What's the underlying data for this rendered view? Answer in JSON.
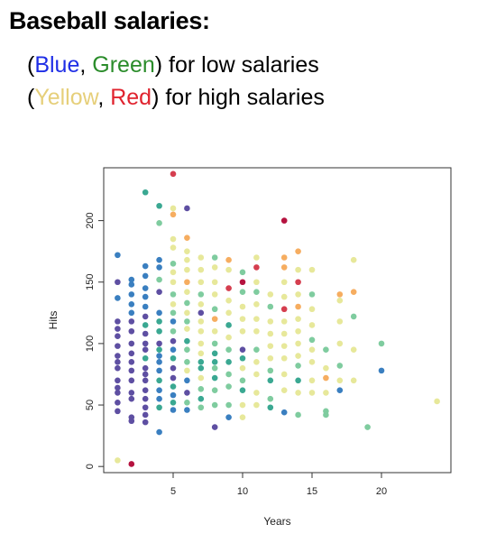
{
  "heading": "Baseball salaries:",
  "legend_lines": {
    "line1": {
      "open": "(",
      "blue": "Blue",
      "sep": ", ",
      "green": "Green",
      "close": ") for low salaries"
    },
    "line2": {
      "open": "(",
      "yellow": "Yellow",
      "sep": ", ",
      "red": "Red",
      "close": ") for high salaries"
    }
  },
  "colors": {
    "blue": "#3a7fc0",
    "purple": "#5e4fa2",
    "teal": "#3aa892",
    "green": "#7fcc9f",
    "yellow": "#e7e89a",
    "orange": "#f6ad60",
    "red": "#d53e4f",
    "darkred": "#b5123f"
  },
  "chart_data": {
    "type": "scatter",
    "title": "",
    "xlabel": "Years",
    "ylabel": "Hits",
    "xlim": [
      0,
      25
    ],
    "ylim": [
      -5,
      243
    ],
    "xticks": [
      5,
      10,
      15,
      20
    ],
    "yticks": [
      0,
      50,
      100,
      150,
      200
    ],
    "grid": false,
    "points": [
      {
        "x": 1,
        "y": 172,
        "c": "blue"
      },
      {
        "x": 1,
        "y": 150,
        "c": "purple"
      },
      {
        "x": 1,
        "y": 137,
        "c": "blue"
      },
      {
        "x": 1,
        "y": 118,
        "c": "purple"
      },
      {
        "x": 1,
        "y": 112,
        "c": "purple"
      },
      {
        "x": 1,
        "y": 106,
        "c": "purple"
      },
      {
        "x": 1,
        "y": 98,
        "c": "purple"
      },
      {
        "x": 1,
        "y": 90,
        "c": "purple"
      },
      {
        "x": 1,
        "y": 85,
        "c": "purple"
      },
      {
        "x": 1,
        "y": 80,
        "c": "purple"
      },
      {
        "x": 1,
        "y": 70,
        "c": "purple"
      },
      {
        "x": 1,
        "y": 64,
        "c": "purple"
      },
      {
        "x": 1,
        "y": 60,
        "c": "purple"
      },
      {
        "x": 1,
        "y": 52,
        "c": "purple"
      },
      {
        "x": 1,
        "y": 45,
        "c": "purple"
      },
      {
        "x": 1,
        "y": 5,
        "c": "yellow"
      },
      {
        "x": 2,
        "y": 152,
        "c": "blue"
      },
      {
        "x": 2,
        "y": 148,
        "c": "blue"
      },
      {
        "x": 2,
        "y": 140,
        "c": "blue"
      },
      {
        "x": 2,
        "y": 132,
        "c": "blue"
      },
      {
        "x": 2,
        "y": 125,
        "c": "blue"
      },
      {
        "x": 2,
        "y": 118,
        "c": "purple"
      },
      {
        "x": 2,
        "y": 110,
        "c": "purple"
      },
      {
        "x": 2,
        "y": 100,
        "c": "purple"
      },
      {
        "x": 2,
        "y": 92,
        "c": "purple"
      },
      {
        "x": 2,
        "y": 85,
        "c": "purple"
      },
      {
        "x": 2,
        "y": 78,
        "c": "purple"
      },
      {
        "x": 2,
        "y": 70,
        "c": "purple"
      },
      {
        "x": 2,
        "y": 60,
        "c": "purple"
      },
      {
        "x": 2,
        "y": 55,
        "c": "purple"
      },
      {
        "x": 2,
        "y": 40,
        "c": "purple"
      },
      {
        "x": 2,
        "y": 37,
        "c": "purple"
      },
      {
        "x": 2,
        "y": 2,
        "c": "darkred"
      },
      {
        "x": 3,
        "y": 223,
        "c": "teal"
      },
      {
        "x": 3,
        "y": 163,
        "c": "blue"
      },
      {
        "x": 3,
        "y": 155,
        "c": "blue"
      },
      {
        "x": 3,
        "y": 145,
        "c": "blue"
      },
      {
        "x": 3,
        "y": 138,
        "c": "blue"
      },
      {
        "x": 3,
        "y": 130,
        "c": "blue"
      },
      {
        "x": 3,
        "y": 122,
        "c": "purple"
      },
      {
        "x": 3,
        "y": 115,
        "c": "teal"
      },
      {
        "x": 3,
        "y": 108,
        "c": "purple"
      },
      {
        "x": 3,
        "y": 100,
        "c": "purple"
      },
      {
        "x": 3,
        "y": 95,
        "c": "purple"
      },
      {
        "x": 3,
        "y": 88,
        "c": "teal"
      },
      {
        "x": 3,
        "y": 80,
        "c": "purple"
      },
      {
        "x": 3,
        "y": 75,
        "c": "purple"
      },
      {
        "x": 3,
        "y": 70,
        "c": "purple"
      },
      {
        "x": 3,
        "y": 62,
        "c": "purple"
      },
      {
        "x": 3,
        "y": 55,
        "c": "purple"
      },
      {
        "x": 3,
        "y": 48,
        "c": "purple"
      },
      {
        "x": 3,
        "y": 42,
        "c": "purple"
      },
      {
        "x": 3,
        "y": 36,
        "c": "purple"
      },
      {
        "x": 4,
        "y": 212,
        "c": "teal"
      },
      {
        "x": 4,
        "y": 198,
        "c": "green"
      },
      {
        "x": 4,
        "y": 168,
        "c": "blue"
      },
      {
        "x": 4,
        "y": 162,
        "c": "blue"
      },
      {
        "x": 4,
        "y": 152,
        "c": "green"
      },
      {
        "x": 4,
        "y": 142,
        "c": "purple"
      },
      {
        "x": 4,
        "y": 125,
        "c": "blue"
      },
      {
        "x": 4,
        "y": 118,
        "c": "teal"
      },
      {
        "x": 4,
        "y": 110,
        "c": "teal"
      },
      {
        "x": 4,
        "y": 100,
        "c": "purple"
      },
      {
        "x": 4,
        "y": 95,
        "c": "teal"
      },
      {
        "x": 4,
        "y": 90,
        "c": "blue"
      },
      {
        "x": 4,
        "y": 85,
        "c": "blue"
      },
      {
        "x": 4,
        "y": 78,
        "c": "blue"
      },
      {
        "x": 4,
        "y": 70,
        "c": "teal"
      },
      {
        "x": 4,
        "y": 62,
        "c": "blue"
      },
      {
        "x": 4,
        "y": 55,
        "c": "blue"
      },
      {
        "x": 4,
        "y": 48,
        "c": "teal"
      },
      {
        "x": 4,
        "y": 28,
        "c": "blue"
      },
      {
        "x": 5,
        "y": 238,
        "c": "red"
      },
      {
        "x": 5,
        "y": 210,
        "c": "yellow"
      },
      {
        "x": 5,
        "y": 205,
        "c": "orange"
      },
      {
        "x": 5,
        "y": 185,
        "c": "yellow"
      },
      {
        "x": 5,
        "y": 178,
        "c": "yellow"
      },
      {
        "x": 5,
        "y": 165,
        "c": "green"
      },
      {
        "x": 5,
        "y": 158,
        "c": "yellow"
      },
      {
        "x": 5,
        "y": 150,
        "c": "yellow"
      },
      {
        "x": 5,
        "y": 140,
        "c": "green"
      },
      {
        "x": 5,
        "y": 132,
        "c": "yellow"
      },
      {
        "x": 5,
        "y": 125,
        "c": "green"
      },
      {
        "x": 5,
        "y": 118,
        "c": "blue"
      },
      {
        "x": 5,
        "y": 110,
        "c": "green"
      },
      {
        "x": 5,
        "y": 102,
        "c": "purple"
      },
      {
        "x": 5,
        "y": 95,
        "c": "blue"
      },
      {
        "x": 5,
        "y": 88,
        "c": "teal"
      },
      {
        "x": 5,
        "y": 80,
        "c": "purple"
      },
      {
        "x": 5,
        "y": 72,
        "c": "purple"
      },
      {
        "x": 5,
        "y": 65,
        "c": "teal"
      },
      {
        "x": 5,
        "y": 58,
        "c": "blue"
      },
      {
        "x": 5,
        "y": 52,
        "c": "teal"
      },
      {
        "x": 5,
        "y": 46,
        "c": "blue"
      },
      {
        "x": 6,
        "y": 210,
        "c": "purple"
      },
      {
        "x": 6,
        "y": 186,
        "c": "orange"
      },
      {
        "x": 6,
        "y": 175,
        "c": "yellow"
      },
      {
        "x": 6,
        "y": 168,
        "c": "yellow"
      },
      {
        "x": 6,
        "y": 160,
        "c": "yellow"
      },
      {
        "x": 6,
        "y": 150,
        "c": "orange"
      },
      {
        "x": 6,
        "y": 142,
        "c": "yellow"
      },
      {
        "x": 6,
        "y": 133,
        "c": "green"
      },
      {
        "x": 6,
        "y": 125,
        "c": "yellow"
      },
      {
        "x": 6,
        "y": 118,
        "c": "green"
      },
      {
        "x": 6,
        "y": 112,
        "c": "yellow"
      },
      {
        "x": 6,
        "y": 102,
        "c": "teal"
      },
      {
        "x": 6,
        "y": 95,
        "c": "green"
      },
      {
        "x": 6,
        "y": 85,
        "c": "green"
      },
      {
        "x": 6,
        "y": 78,
        "c": "yellow"
      },
      {
        "x": 6,
        "y": 70,
        "c": "blue"
      },
      {
        "x": 6,
        "y": 60,
        "c": "purple"
      },
      {
        "x": 6,
        "y": 52,
        "c": "green"
      },
      {
        "x": 6,
        "y": 46,
        "c": "blue"
      },
      {
        "x": 7,
        "y": 170,
        "c": "yellow"
      },
      {
        "x": 7,
        "y": 160,
        "c": "yellow"
      },
      {
        "x": 7,
        "y": 150,
        "c": "yellow"
      },
      {
        "x": 7,
        "y": 140,
        "c": "green"
      },
      {
        "x": 7,
        "y": 132,
        "c": "yellow"
      },
      {
        "x": 7,
        "y": 125,
        "c": "purple"
      },
      {
        "x": 7,
        "y": 118,
        "c": "yellow"
      },
      {
        "x": 7,
        "y": 110,
        "c": "yellow"
      },
      {
        "x": 7,
        "y": 100,
        "c": "yellow"
      },
      {
        "x": 7,
        "y": 92,
        "c": "yellow"
      },
      {
        "x": 7,
        "y": 85,
        "c": "teal"
      },
      {
        "x": 7,
        "y": 80,
        "c": "teal"
      },
      {
        "x": 7,
        "y": 72,
        "c": "yellow"
      },
      {
        "x": 7,
        "y": 63,
        "c": "green"
      },
      {
        "x": 7,
        "y": 55,
        "c": "teal"
      },
      {
        "x": 7,
        "y": 48,
        "c": "green"
      },
      {
        "x": 8,
        "y": 170,
        "c": "green"
      },
      {
        "x": 8,
        "y": 162,
        "c": "yellow"
      },
      {
        "x": 8,
        "y": 150,
        "c": "yellow"
      },
      {
        "x": 8,
        "y": 140,
        "c": "yellow"
      },
      {
        "x": 8,
        "y": 128,
        "c": "green"
      },
      {
        "x": 8,
        "y": 120,
        "c": "orange"
      },
      {
        "x": 8,
        "y": 110,
        "c": "yellow"
      },
      {
        "x": 8,
        "y": 100,
        "c": "green"
      },
      {
        "x": 8,
        "y": 92,
        "c": "teal"
      },
      {
        "x": 8,
        "y": 85,
        "c": "teal"
      },
      {
        "x": 8,
        "y": 80,
        "c": "green"
      },
      {
        "x": 8,
        "y": 72,
        "c": "teal"
      },
      {
        "x": 8,
        "y": 62,
        "c": "green"
      },
      {
        "x": 8,
        "y": 50,
        "c": "green"
      },
      {
        "x": 8,
        "y": 32,
        "c": "purple"
      },
      {
        "x": 9,
        "y": 168,
        "c": "orange"
      },
      {
        "x": 9,
        "y": 160,
        "c": "yellow"
      },
      {
        "x": 9,
        "y": 145,
        "c": "red"
      },
      {
        "x": 9,
        "y": 135,
        "c": "yellow"
      },
      {
        "x": 9,
        "y": 125,
        "c": "yellow"
      },
      {
        "x": 9,
        "y": 115,
        "c": "teal"
      },
      {
        "x": 9,
        "y": 105,
        "c": "yellow"
      },
      {
        "x": 9,
        "y": 95,
        "c": "green"
      },
      {
        "x": 9,
        "y": 85,
        "c": "teal"
      },
      {
        "x": 9,
        "y": 75,
        "c": "green"
      },
      {
        "x": 9,
        "y": 65,
        "c": "green"
      },
      {
        "x": 9,
        "y": 50,
        "c": "green"
      },
      {
        "x": 9,
        "y": 40,
        "c": "blue"
      },
      {
        "x": 10,
        "y": 158,
        "c": "green"
      },
      {
        "x": 10,
        "y": 150,
        "c": "darkred"
      },
      {
        "x": 10,
        "y": 142,
        "c": "green"
      },
      {
        "x": 10,
        "y": 130,
        "c": "yellow"
      },
      {
        "x": 10,
        "y": 120,
        "c": "yellow"
      },
      {
        "x": 10,
        "y": 110,
        "c": "yellow"
      },
      {
        "x": 10,
        "y": 95,
        "c": "purple"
      },
      {
        "x": 10,
        "y": 88,
        "c": "teal"
      },
      {
        "x": 10,
        "y": 80,
        "c": "yellow"
      },
      {
        "x": 10,
        "y": 70,
        "c": "green"
      },
      {
        "x": 10,
        "y": 62,
        "c": "teal"
      },
      {
        "x": 10,
        "y": 50,
        "c": "yellow"
      },
      {
        "x": 10,
        "y": 40,
        "c": "yellow"
      },
      {
        "x": 11,
        "y": 170,
        "c": "yellow"
      },
      {
        "x": 11,
        "y": 162,
        "c": "red"
      },
      {
        "x": 11,
        "y": 150,
        "c": "yellow"
      },
      {
        "x": 11,
        "y": 142,
        "c": "green"
      },
      {
        "x": 11,
        "y": 132,
        "c": "yellow"
      },
      {
        "x": 11,
        "y": 120,
        "c": "yellow"
      },
      {
        "x": 11,
        "y": 110,
        "c": "yellow"
      },
      {
        "x": 11,
        "y": 95,
        "c": "green"
      },
      {
        "x": 11,
        "y": 85,
        "c": "yellow"
      },
      {
        "x": 11,
        "y": 75,
        "c": "yellow"
      },
      {
        "x": 11,
        "y": 60,
        "c": "yellow"
      },
      {
        "x": 11,
        "y": 50,
        "c": "yellow"
      },
      {
        "x": 12,
        "y": 140,
        "c": "yellow"
      },
      {
        "x": 12,
        "y": 130,
        "c": "green"
      },
      {
        "x": 12,
        "y": 118,
        "c": "yellow"
      },
      {
        "x": 12,
        "y": 108,
        "c": "yellow"
      },
      {
        "x": 12,
        "y": 98,
        "c": "yellow"
      },
      {
        "x": 12,
        "y": 88,
        "c": "yellow"
      },
      {
        "x": 12,
        "y": 78,
        "c": "green"
      },
      {
        "x": 12,
        "y": 70,
        "c": "teal"
      },
      {
        "x": 12,
        "y": 55,
        "c": "green"
      },
      {
        "x": 12,
        "y": 48,
        "c": "teal"
      },
      {
        "x": 13,
        "y": 200,
        "c": "darkred"
      },
      {
        "x": 13,
        "y": 170,
        "c": "orange"
      },
      {
        "x": 13,
        "y": 162,
        "c": "orange"
      },
      {
        "x": 13,
        "y": 150,
        "c": "yellow"
      },
      {
        "x": 13,
        "y": 138,
        "c": "yellow"
      },
      {
        "x": 13,
        "y": 128,
        "c": "red"
      },
      {
        "x": 13,
        "y": 118,
        "c": "yellow"
      },
      {
        "x": 13,
        "y": 108,
        "c": "yellow"
      },
      {
        "x": 13,
        "y": 98,
        "c": "yellow"
      },
      {
        "x": 13,
        "y": 88,
        "c": "yellow"
      },
      {
        "x": 13,
        "y": 75,
        "c": "yellow"
      },
      {
        "x": 13,
        "y": 62,
        "c": "yellow"
      },
      {
        "x": 13,
        "y": 44,
        "c": "blue"
      },
      {
        "x": 14,
        "y": 175,
        "c": "orange"
      },
      {
        "x": 14,
        "y": 160,
        "c": "yellow"
      },
      {
        "x": 14,
        "y": 150,
        "c": "red"
      },
      {
        "x": 14,
        "y": 140,
        "c": "yellow"
      },
      {
        "x": 14,
        "y": 130,
        "c": "orange"
      },
      {
        "x": 14,
        "y": 120,
        "c": "yellow"
      },
      {
        "x": 14,
        "y": 110,
        "c": "yellow"
      },
      {
        "x": 14,
        "y": 100,
        "c": "yellow"
      },
      {
        "x": 14,
        "y": 90,
        "c": "yellow"
      },
      {
        "x": 14,
        "y": 82,
        "c": "green"
      },
      {
        "x": 14,
        "y": 70,
        "c": "teal"
      },
      {
        "x": 14,
        "y": 60,
        "c": "yellow"
      },
      {
        "x": 14,
        "y": 42,
        "c": "green"
      },
      {
        "x": 15,
        "y": 160,
        "c": "yellow"
      },
      {
        "x": 15,
        "y": 140,
        "c": "green"
      },
      {
        "x": 15,
        "y": 128,
        "c": "yellow"
      },
      {
        "x": 15,
        "y": 115,
        "c": "yellow"
      },
      {
        "x": 15,
        "y": 103,
        "c": "green"
      },
      {
        "x": 15,
        "y": 95,
        "c": "yellow"
      },
      {
        "x": 15,
        "y": 85,
        "c": "yellow"
      },
      {
        "x": 15,
        "y": 70,
        "c": "yellow"
      },
      {
        "x": 15,
        "y": 60,
        "c": "yellow"
      },
      {
        "x": 16,
        "y": 95,
        "c": "green"
      },
      {
        "x": 16,
        "y": 80,
        "c": "yellow"
      },
      {
        "x": 16,
        "y": 72,
        "c": "orange"
      },
      {
        "x": 16,
        "y": 60,
        "c": "yellow"
      },
      {
        "x": 16,
        "y": 45,
        "c": "green"
      },
      {
        "x": 16,
        "y": 42,
        "c": "green"
      },
      {
        "x": 17,
        "y": 140,
        "c": "orange"
      },
      {
        "x": 17,
        "y": 135,
        "c": "yellow"
      },
      {
        "x": 17,
        "y": 118,
        "c": "yellow"
      },
      {
        "x": 17,
        "y": 100,
        "c": "yellow"
      },
      {
        "x": 17,
        "y": 82,
        "c": "green"
      },
      {
        "x": 17,
        "y": 70,
        "c": "yellow"
      },
      {
        "x": 17,
        "y": 62,
        "c": "blue"
      },
      {
        "x": 18,
        "y": 168,
        "c": "yellow"
      },
      {
        "x": 18,
        "y": 142,
        "c": "orange"
      },
      {
        "x": 18,
        "y": 122,
        "c": "green"
      },
      {
        "x": 18,
        "y": 95,
        "c": "yellow"
      },
      {
        "x": 18,
        "y": 70,
        "c": "yellow"
      },
      {
        "x": 19,
        "y": 32,
        "c": "green"
      },
      {
        "x": 20,
        "y": 100,
        "c": "green"
      },
      {
        "x": 20,
        "y": 78,
        "c": "blue"
      },
      {
        "x": 24,
        "y": 53,
        "c": "yellow"
      }
    ]
  }
}
